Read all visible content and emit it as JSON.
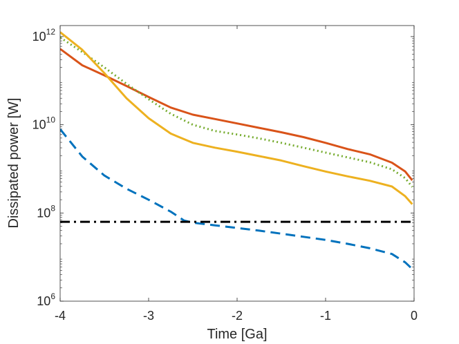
{
  "chart_data": {
    "type": "line",
    "title": "",
    "xlabel": "Time [Ga]",
    "ylabel": "Dissipated power [W]",
    "xlim": [
      -4,
      0
    ],
    "ylim_log10": [
      6,
      12.25
    ],
    "yscale": "log",
    "grid": false,
    "box": true,
    "x_ticks": [
      {
        "value": -4,
        "label": "-4"
      },
      {
        "value": -3,
        "label": "-3"
      },
      {
        "value": -2,
        "label": "-2"
      },
      {
        "value": -1,
        "label": "-1"
      },
      {
        "value": 0,
        "label": "0"
      }
    ],
    "y_ticks": [
      {
        "log10": 6,
        "base": "10",
        "exp": "6"
      },
      {
        "log10": 8,
        "base": "10",
        "exp": "8"
      },
      {
        "log10": 10,
        "base": "10",
        "exp": "10"
      },
      {
        "log10": 12,
        "base": "10",
        "exp": "12"
      }
    ],
    "series": [
      {
        "name": "red solid",
        "color": "#d95319",
        "style": "solid",
        "x": [
          -4.0,
          -3.75,
          -3.5,
          -3.25,
          -3.0,
          -2.75,
          -2.5,
          -2.25,
          -2.0,
          -1.75,
          -1.5,
          -1.25,
          -1.0,
          -0.75,
          -0.5,
          -0.25,
          -0.1,
          -0.02
        ],
        "y": [
          11.72,
          11.35,
          11.12,
          10.88,
          10.63,
          10.39,
          10.23,
          10.13,
          10.03,
          9.93,
          9.83,
          9.72,
          9.59,
          9.45,
          9.33,
          9.14,
          8.94,
          8.74
        ]
      },
      {
        "name": "green dotted",
        "color": "#77ac30",
        "style": "dotted",
        "x": [
          -4.0,
          -3.75,
          -3.5,
          -3.25,
          -3.0,
          -2.75,
          -2.5,
          -2.25,
          -2.0,
          -1.75,
          -1.5,
          -1.25,
          -1.0,
          -0.75,
          -0.5,
          -0.25,
          -0.1,
          -0.02
        ],
        "y": [
          11.98,
          11.65,
          11.3,
          10.93,
          10.58,
          10.25,
          10.0,
          9.86,
          9.78,
          9.69,
          9.59,
          9.48,
          9.37,
          9.26,
          9.15,
          8.99,
          8.79,
          8.59
        ]
      },
      {
        "name": "yellow solid",
        "color": "#edb120",
        "style": "solid",
        "x": [
          -4.0,
          -3.75,
          -3.5,
          -3.25,
          -3.0,
          -2.75,
          -2.5,
          -2.25,
          -2.0,
          -1.75,
          -1.5,
          -1.25,
          -1.0,
          -0.75,
          -0.5,
          -0.25,
          -0.1,
          -0.02
        ],
        "y": [
          12.1,
          11.7,
          11.17,
          10.6,
          10.15,
          9.8,
          9.59,
          9.48,
          9.39,
          9.29,
          9.19,
          9.06,
          8.94,
          8.83,
          8.73,
          8.6,
          8.38,
          8.2
        ]
      },
      {
        "name": "blue dashed",
        "color": "#0072bd",
        "style": "dashed",
        "x": [
          -4.0,
          -3.75,
          -3.5,
          -3.25,
          -3.0,
          -2.75,
          -2.6,
          -2.5,
          -2.25,
          -2.0,
          -1.75,
          -1.5,
          -1.25,
          -1.0,
          -0.75,
          -0.5,
          -0.25,
          -0.1,
          -0.02
        ],
        "y": [
          9.9,
          9.28,
          8.85,
          8.55,
          8.3,
          8.03,
          7.83,
          7.78,
          7.72,
          7.66,
          7.6,
          7.53,
          7.46,
          7.39,
          7.3,
          7.2,
          7.07,
          6.88,
          6.73
        ]
      },
      {
        "name": "black dash-dot",
        "color": "#000000",
        "style": "dashdot",
        "x": [
          -4.0,
          0.0
        ],
        "y": [
          7.8,
          7.8
        ]
      }
    ]
  }
}
